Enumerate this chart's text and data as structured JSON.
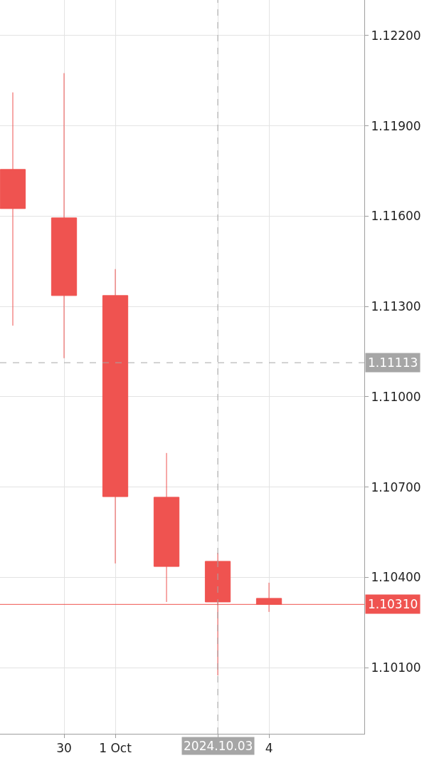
{
  "chart_data": {
    "type": "candlestick",
    "color": "#ef5350",
    "categories": [
      null,
      "30",
      "1 Oct",
      null,
      "2024.10.03",
      "4"
    ],
    "ohlc": [
      [
        1.11755,
        1.12011,
        1.11236,
        1.11625
      ],
      [
        1.11594,
        1.12075,
        1.11128,
        1.11336
      ],
      [
        1.11336,
        1.11424,
        1.10446,
        1.10668
      ],
      [
        1.10666,
        1.10813,
        1.10318,
        1.10436
      ],
      [
        1.10453,
        1.10481,
        1.10074,
        1.10318
      ],
      [
        1.1033,
        1.10382,
        1.10285,
        1.1031
      ]
    ],
    "ylim": [
      1.0988,
      1.12318
    ],
    "yticks": [
      {
        "value": 1.101,
        "label": "1.10100"
      },
      {
        "value": 1.104,
        "label": "1.10400"
      },
      {
        "value": 1.107,
        "label": "1.10700"
      },
      {
        "value": 1.11,
        "label": "1.11000"
      },
      {
        "value": 1.113,
        "label": "1.11300"
      },
      {
        "value": 1.116,
        "label": "1.11600"
      },
      {
        "value": 1.119,
        "label": "1.11900"
      },
      {
        "value": 1.122,
        "label": "1.12200"
      }
    ],
    "grid": true,
    "ref_lines": [
      {
        "axis": "x",
        "value": "2024.10.03",
        "color": "#a6a6a6",
        "line_style": "dashed"
      },
      {
        "axis": "y",
        "value": 1.11113,
        "label": "1.11113",
        "color": "#a6a6a6",
        "line_style": "dashed"
      },
      {
        "axis": "y",
        "value": 1.1031,
        "label": "1.10310",
        "color": "#ef5350",
        "line_style": "solid"
      }
    ]
  }
}
